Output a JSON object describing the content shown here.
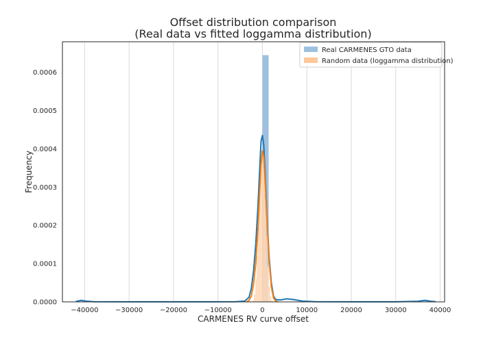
{
  "chart_data": {
    "type": "histogram+kde",
    "title": "Offset distribution comparison",
    "subtitle": "(Real data vs fitted loggamma distribution)",
    "xlabel": "CARMENES RV curve offset",
    "ylabel": "Frequency",
    "xlim": [
      -45000,
      41000
    ],
    "ylim": [
      0,
      0.00068
    ],
    "xticks": [
      -40000,
      -30000,
      -20000,
      -10000,
      0,
      10000,
      20000,
      30000,
      40000
    ],
    "yticks": [
      0.0,
      0.0001,
      0.0002,
      0.0003,
      0.0004,
      0.0005,
      0.0006
    ],
    "ytick_labels": [
      "0.0000",
      "0.0001",
      "0.0002",
      "0.0003",
      "0.0004",
      "0.0005",
      "0.0006"
    ],
    "grid": "vertical",
    "legend_position": "top-right",
    "colors": {
      "real": "#1f77b4",
      "real_bar": "#9fc1e0",
      "random": "#ff7f0e",
      "random_bar": "#ffc89a"
    },
    "series": [
      {
        "name": "Real CARMENES GTO data",
        "histogram": {
          "bins": [
            [
              0,
              1400,
              0.000645
            ]
          ]
        },
        "kde": [
          [
            -42000,
            1e-06
          ],
          [
            -40800,
            4e-06
          ],
          [
            -39800,
            2e-06
          ],
          [
            -38000,
            5e-07
          ],
          [
            -30000,
            3e-07
          ],
          [
            -20000,
            3e-07
          ],
          [
            -10000,
            3e-07
          ],
          [
            -6000,
            5e-07
          ],
          [
            -4000,
            2e-06
          ],
          [
            -3000,
            1.2e-05
          ],
          [
            -2500,
            3.5e-05
          ],
          [
            -2000,
            8e-05
          ],
          [
            -1500,
            0.00015
          ],
          [
            -1000,
            0.00025
          ],
          [
            -600,
            0.00035
          ],
          [
            -300,
            0.00042
          ],
          [
            0,
            0.000435
          ],
          [
            300,
            0.00041
          ],
          [
            600,
            0.00034
          ],
          [
            1000,
            0.00023
          ],
          [
            1500,
            0.00012
          ],
          [
            2000,
            5e-05
          ],
          [
            2500,
            1.5e-05
          ],
          [
            3000,
            6e-06
          ],
          [
            4000,
            5e-06
          ],
          [
            5500,
            8e-06
          ],
          [
            7000,
            6e-06
          ],
          [
            9000,
            2e-06
          ],
          [
            12000,
            5e-07
          ],
          [
            20000,
            3e-07
          ],
          [
            30000,
            3e-07
          ],
          [
            35000,
            1.5e-06
          ],
          [
            36500,
            4e-06
          ],
          [
            38000,
            1.5e-06
          ],
          [
            39000,
            5e-07
          ]
        ]
      },
      {
        "name": "Random data (loggamma distribution)",
        "histogram": {
          "bins": [
            [
              -2200,
              -1900,
              4e-06
            ],
            [
              -1900,
              -1600,
              2e-05
            ],
            [
              -1600,
              -1300,
              6e-05
            ],
            [
              -1300,
              -1000,
              0.00012
            ],
            [
              -1000,
              -700,
              0.0002
            ],
            [
              -700,
              -400,
              0.0003
            ],
            [
              -400,
              -100,
              0.00037
            ],
            [
              -100,
              200,
              0.00039
            ],
            [
              200,
              500,
              0.00035
            ],
            [
              500,
              800,
              0.00027
            ],
            [
              800,
              1100,
              0.00017
            ],
            [
              1100,
              1400,
              9e-05
            ],
            [
              1400,
              1700,
              4e-05
            ],
            [
              1700,
              2000,
              1.5e-05
            ],
            [
              2000,
              2300,
              4e-06
            ]
          ]
        },
        "kde": [
          [
            -3500,
            0.0
          ],
          [
            -3000,
            4e-06
          ],
          [
            -2500,
            1.5e-05
          ],
          [
            -2000,
            4.5e-05
          ],
          [
            -1500,
            0.0001
          ],
          [
            -1000,
            0.00019
          ],
          [
            -600,
            0.00029
          ],
          [
            -300,
            0.00036
          ],
          [
            0,
            0.000395
          ],
          [
            300,
            0.00038
          ],
          [
            600,
            0.00032
          ],
          [
            1000,
            0.00022
          ],
          [
            1500,
            0.00011
          ],
          [
            2000,
            4e-05
          ],
          [
            2500,
            1e-05
          ],
          [
            3000,
            2e-06
          ],
          [
            3500,
            0.0
          ]
        ]
      }
    ]
  }
}
